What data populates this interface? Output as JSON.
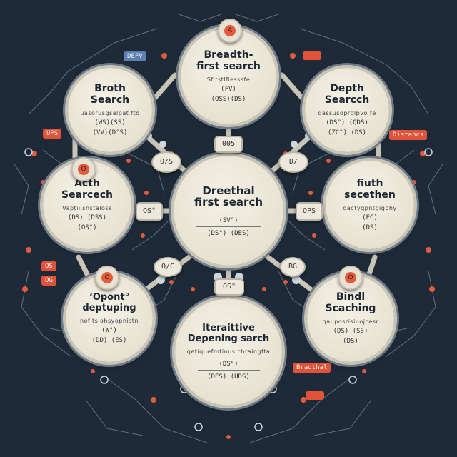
{
  "nodes": {
    "center": {
      "title": "Dreethal first search",
      "line1": "(SV°)",
      "line2": "(DS°) (DES)"
    },
    "top": {
      "title": "Breadth-first search",
      "sub": "Sfitstlfiesssfe",
      "line1": "(FV)",
      "line2": "(QSS)(DS)"
    },
    "ul": {
      "title": "Broth Search",
      "sub": "uasorusgsalpat fto",
      "line1": "(WS)(SS)",
      "line2": "(VV)(D°S)"
    },
    "ur": {
      "title": "Depth Searcch",
      "sub": "qassusoprolpvo fe",
      "line1": "(DS°) (QDS)",
      "line2": "(ZC°) (DS)"
    },
    "ml": {
      "title": "Acth Searcech",
      "sub": "Vaptiiisnstaloss",
      "line1": "(DS) (DSS)",
      "line2": "(QS°)"
    },
    "mr": {
      "title": "fiuth secethen",
      "sub": "qactyqpntgigphy",
      "line1": "(EC)",
      "line2": "(DS)"
    },
    "ll": {
      "title": "ʻOpont° deptuping",
      "sub": "nofitsiohsyopnistn",
      "line1": "(W°)",
      "line2": "(DD) (ES)"
    },
    "lr": {
      "title": "Bindl Scaching",
      "sub": "qauposrisiuojcesr",
      "line1": "(DS) (SS)",
      "line2": "(DS)"
    },
    "bottom": {
      "title": "Iteraittive Depening sarch",
      "sub": "qetiquefmtinus chraingfta",
      "line1": "(DS°)",
      "line2": "(DES) (UDS)"
    }
  },
  "connectors": {
    "top": "005",
    "ul": "O/S",
    "ur": "D/",
    "left": "OS°",
    "right": "OPS",
    "ll": "O/C",
    "lr": "BG",
    "bottom": "OS°"
  },
  "badges": {
    "top": "A",
    "ml": "O",
    "ll": "O",
    "lr": "O"
  },
  "tags": {
    "ubfv": "DEFV",
    "ups": "UPS",
    "distance": "Distancs",
    "breadth": "Bradthal",
    "label_os": "OS",
    "label_og": "OG"
  },
  "colors": {
    "background": "#1e2a38",
    "node": "#e7e2d2",
    "accent": "#e0533a",
    "wire": "#c9c5b6"
  }
}
